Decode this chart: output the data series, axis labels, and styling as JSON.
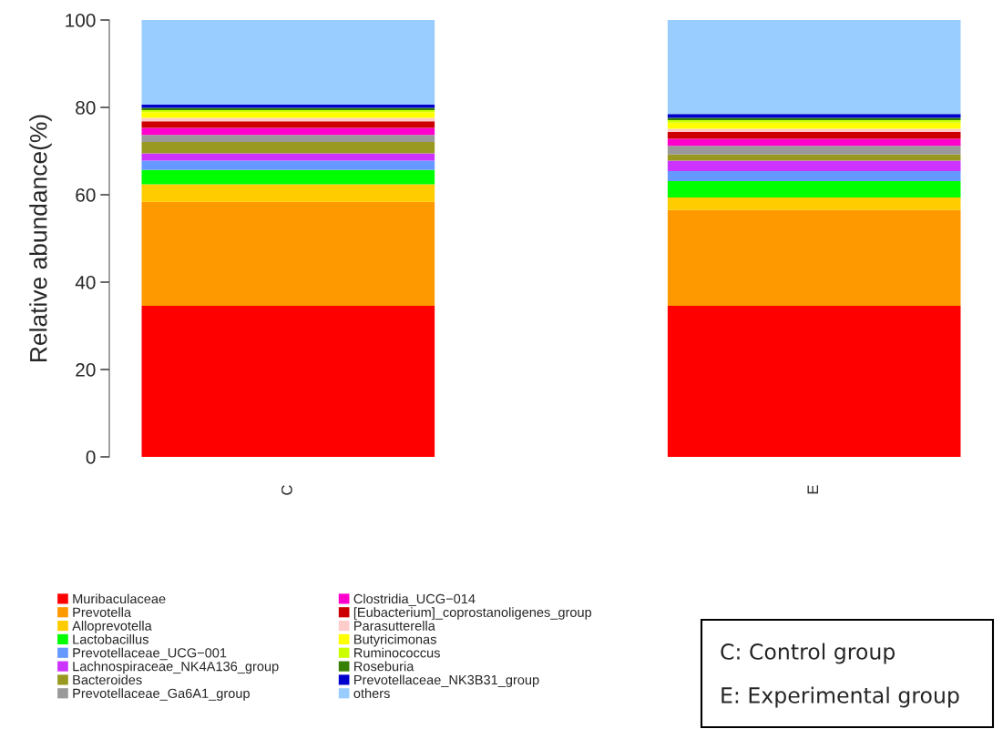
{
  "chart_data": {
    "type": "bar",
    "stacked": true,
    "ylabel": "Relative abundance(%)",
    "categories": [
      "C",
      "E"
    ],
    "ylim": [
      0,
      100
    ],
    "yticks": [
      0,
      20,
      40,
      60,
      80,
      100
    ],
    "grid": false,
    "legend": "bottom",
    "series": [
      {
        "name": "Muribaculaceae",
        "color": "#ff0000",
        "values": [
          34.6,
          34.6
        ]
      },
      {
        "name": "Prevotella",
        "color": "#ff9900",
        "values": [
          23.8,
          21.9
        ]
      },
      {
        "name": "Alloprevotella",
        "color": "#ffcc00",
        "values": [
          4.0,
          2.9
        ]
      },
      {
        "name": "Lactobacillus",
        "color": "#00ff00",
        "values": [
          3.3,
          3.7
        ]
      },
      {
        "name": "Prevotellaceae_UCG−001",
        "color": "#6699ff",
        "values": [
          2.1,
          2.3
        ]
      },
      {
        "name": "Lachnospiraceae_NK4A136_group",
        "color": "#cc33ff",
        "values": [
          1.7,
          2.4
        ]
      },
      {
        "name": "Bacteroides",
        "color": "#999922",
        "values": [
          2.6,
          1.4
        ]
      },
      {
        "name": "Prevotellaceae_Ga6A1_group",
        "color": "#999999",
        "values": [
          1.6,
          2.0
        ]
      },
      {
        "name": "Clostridia_UCG−014",
        "color": "#ff00cc",
        "values": [
          1.6,
          1.6
        ]
      },
      {
        "name": "[Eubacterium]_coprostanoligenes_group",
        "color": "#cc0000",
        "values": [
          1.5,
          1.6
        ]
      },
      {
        "name": "Parasutterella",
        "color": "#ffcccc",
        "values": [
          0.8,
          0.7
        ]
      },
      {
        "name": "Butyricimonas",
        "color": "#ffff00",
        "values": [
          1.3,
          1.4
        ]
      },
      {
        "name": "Ruminococcus",
        "color": "#ccff00",
        "values": [
          0.5,
          0.6
        ]
      },
      {
        "name": "Roseburia",
        "color": "#358000",
        "values": [
          0.5,
          0.5
        ]
      },
      {
        "name": "Prevotellaceae_NK3B31_group",
        "color": "#0000cc",
        "values": [
          0.8,
          0.9
        ]
      },
      {
        "name": "others",
        "color": "#99ccff",
        "values": [
          19.3,
          21.5
        ]
      }
    ],
    "annotations": [
      "C: Control group",
      "E: Experimental group"
    ]
  }
}
